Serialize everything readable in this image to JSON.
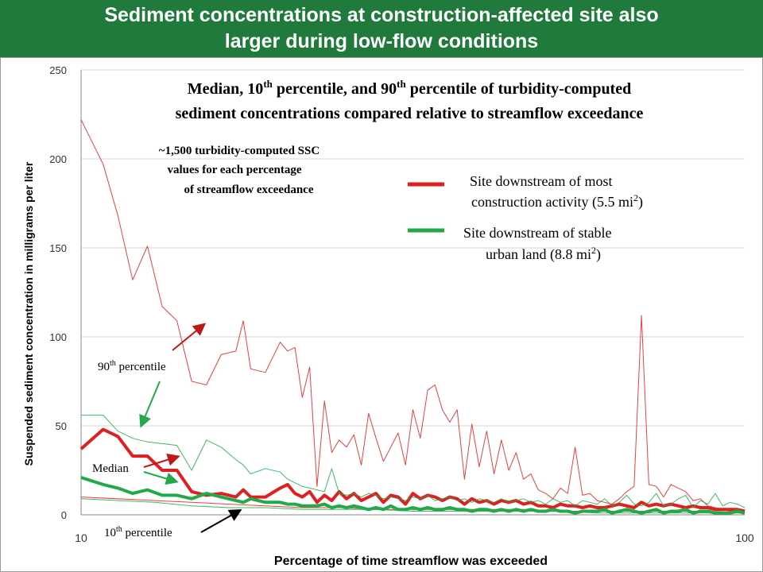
{
  "banner": {
    "title_line1": "Sediment concentrations at construction-affected site also",
    "title_line2": "larger during low-flow conditions",
    "background_color": "#1f7a3c"
  },
  "chart_data": {
    "type": "line",
    "title_line1": "Median, 10",
    "title_sup": "th",
    "title_line1_mid": " percentile, and 90",
    "title_line1_end": " percentile of turbidity-computed",
    "title_line2": "sediment concentrations compared relative to streamflow exceedance",
    "xlabel": "Percentage of time streamflow was exceeded",
    "ylabel": "Suspended sediment concentration in milligrams per liter",
    "xlim": [
      10,
      100
    ],
    "ylim": [
      0,
      250
    ],
    "x_ticks": [
      "10",
      "100"
    ],
    "y_ticks": [
      "0",
      "50",
      "100",
      "150",
      "200",
      "250"
    ],
    "grid": true,
    "annotation": {
      "line1": "~1,500 turbidity-computed SSC",
      "line2": "values for each percentage",
      "line3": "of streamflow exceedance"
    },
    "labels": {
      "p90": "90",
      "median": "Median",
      "p10": "10",
      "sup": "th",
      "percentile": " percentile"
    },
    "legend": {
      "placement": "top-right",
      "construction_line1": "Site downstream of most",
      "construction_line2": "construction activity (5.5 mi",
      "construction_sup": "2",
      "construction_close": ")",
      "urban_line1": "Site downstream of stable",
      "urban_line2": "urban land (8.8 mi",
      "urban_sup": "2",
      "urban_close": ")"
    },
    "colors": {
      "construction": "#e02020",
      "urban": "#22aa4a",
      "arrow_red": "#c01818",
      "arrow_green": "#22aa4a",
      "arrow_black": "#000000",
      "grid": "#d4d4d4"
    },
    "series": [
      {
        "site": "construction",
        "stat": "90th",
        "x": [
          10,
          13,
          15,
          17,
          19,
          21,
          23,
          25,
          27,
          29,
          31,
          32,
          33,
          35,
          37,
          38,
          39,
          40,
          41,
          42,
          43,
          44,
          45,
          46,
          47,
          48,
          49,
          50,
          51,
          52,
          53,
          54,
          55,
          56,
          57,
          58,
          59,
          60,
          61,
          62,
          63,
          64,
          65,
          66,
          67,
          68,
          69,
          70,
          71,
          72,
          73,
          74,
          75,
          76,
          77,
          78,
          79,
          80,
          81,
          82,
          83,
          84,
          85,
          86,
          87,
          88,
          89,
          90,
          91,
          92,
          93,
          94,
          95,
          96,
          97,
          98,
          99,
          100
        ],
        "values": [
          222,
          197,
          168,
          132,
          151,
          117,
          109,
          75,
          73,
          90,
          92,
          109,
          82,
          80,
          97,
          92,
          94,
          66,
          83,
          16,
          64,
          35,
          42,
          38,
          45,
          28,
          57,
          43,
          30,
          38,
          46,
          28,
          59,
          43,
          70,
          73,
          59,
          52,
          59,
          20,
          51,
          27,
          47,
          23,
          42,
          25,
          35,
          20,
          23,
          14,
          12,
          9,
          15,
          12,
          38,
          11,
          12,
          8,
          7,
          6,
          9,
          13,
          16,
          112,
          17,
          16,
          10,
          17,
          15,
          13,
          8,
          9,
          5,
          4,
          3,
          2,
          2,
          1
        ]
      },
      {
        "site": "construction",
        "stat": "median",
        "x": [
          10,
          13,
          15,
          17,
          19,
          21,
          23,
          25,
          27,
          29,
          31,
          32,
          33,
          35,
          37,
          38,
          39,
          40,
          41,
          42,
          43,
          44,
          45,
          46,
          47,
          48,
          49,
          50,
          51,
          52,
          53,
          54,
          55,
          56,
          57,
          58,
          59,
          60,
          61,
          62,
          63,
          64,
          65,
          66,
          67,
          68,
          69,
          70,
          71,
          72,
          73,
          74,
          75,
          76,
          77,
          78,
          79,
          80,
          81,
          82,
          83,
          84,
          85,
          86,
          87,
          88,
          89,
          90,
          91,
          92,
          93,
          94,
          95,
          96,
          97,
          98,
          99,
          100
        ],
        "values": [
          37,
          48,
          44,
          33,
          33,
          25,
          25,
          13,
          11,
          12,
          10,
          14,
          10,
          10,
          15,
          17,
          12,
          10,
          13,
          7,
          11,
          8,
          13,
          9,
          12,
          8,
          10,
          12,
          7,
          11,
          10,
          6,
          12,
          9,
          11,
          10,
          8,
          10,
          9,
          6,
          9,
          7,
          8,
          6,
          8,
          7,
          8,
          6,
          7,
          5,
          5,
          4,
          6,
          5,
          5,
          4,
          5,
          4,
          4,
          5,
          6,
          5,
          4,
          7,
          5,
          6,
          5,
          6,
          5,
          4,
          5,
          4,
          4,
          3,
          3,
          3,
          3,
          2
        ]
      },
      {
        "site": "construction",
        "stat": "10th",
        "x": [
          10,
          20,
          25,
          30,
          35,
          40,
          45,
          50,
          55,
          60,
          65,
          70,
          75,
          80,
          85,
          90,
          95,
          100
        ],
        "values": [
          10,
          8,
          7,
          6,
          5,
          4,
          4,
          3,
          3,
          3,
          3,
          3,
          2,
          2,
          2,
          2,
          2,
          1
        ]
      },
      {
        "site": "urban",
        "stat": "90th",
        "x": [
          10,
          13,
          15,
          17,
          19,
          21,
          23,
          25,
          27,
          29,
          31,
          32,
          33,
          35,
          37,
          38,
          39,
          40,
          41,
          42,
          43,
          44,
          45,
          46,
          47,
          48,
          49,
          50,
          51,
          52,
          53,
          54,
          55,
          56,
          57,
          58,
          59,
          60,
          61,
          62,
          63,
          64,
          65,
          66,
          67,
          68,
          69,
          70,
          71,
          72,
          73,
          74,
          75,
          76,
          77,
          78,
          79,
          80,
          81,
          82,
          83,
          84,
          85,
          86,
          87,
          88,
          89,
          90,
          91,
          92,
          93,
          94,
          95,
          96,
          97,
          98,
          99,
          100
        ],
        "values": [
          56,
          56,
          47,
          43,
          41,
          40,
          39,
          25,
          42,
          38,
          31,
          28,
          23,
          26,
          24,
          20,
          18,
          16,
          15,
          14,
          13,
          26,
          12,
          11,
          12,
          10,
          12,
          11,
          9,
          10,
          9,
          8,
          10,
          9,
          11,
          8,
          9,
          10,
          8,
          9,
          7,
          9,
          8,
          7,
          9,
          7,
          8,
          9,
          7,
          8,
          6,
          9,
          7,
          8,
          5,
          8,
          7,
          6,
          9,
          5,
          7,
          11,
          6,
          5,
          7,
          12,
          5,
          6,
          9,
          11,
          4,
          8,
          6,
          12,
          5,
          7,
          6,
          4
        ]
      },
      {
        "site": "urban",
        "stat": "median",
        "x": [
          10,
          13,
          15,
          17,
          19,
          21,
          23,
          25,
          27,
          29,
          31,
          32,
          33,
          35,
          37,
          38,
          39,
          40,
          41,
          42,
          43,
          44,
          45,
          46,
          47,
          48,
          49,
          50,
          51,
          52,
          53,
          54,
          55,
          56,
          57,
          58,
          59,
          60,
          61,
          62,
          63,
          64,
          65,
          66,
          67,
          68,
          69,
          70,
          71,
          72,
          73,
          74,
          75,
          76,
          77,
          78,
          79,
          80,
          81,
          82,
          83,
          84,
          85,
          86,
          87,
          88,
          89,
          90,
          91,
          92,
          93,
          94,
          95,
          96,
          97,
          98,
          99,
          100
        ],
        "values": [
          21,
          17,
          15,
          12,
          14,
          11,
          11,
          9,
          12,
          10,
          8,
          7,
          9,
          7,
          7,
          6,
          6,
          5,
          5,
          5,
          6,
          4,
          5,
          4,
          5,
          4,
          3,
          4,
          3,
          5,
          3,
          3,
          4,
          3,
          4,
          3,
          3,
          4,
          3,
          3,
          2,
          3,
          3,
          2,
          3,
          2,
          3,
          2,
          3,
          2,
          2,
          3,
          2,
          2,
          1,
          2,
          2,
          2,
          3,
          1,
          2,
          3,
          2,
          1,
          2,
          3,
          1,
          2,
          2,
          3,
          1,
          2,
          2,
          1,
          1,
          1,
          2,
          1
        ]
      },
      {
        "site": "urban",
        "stat": "10th",
        "x": [
          10,
          20,
          25,
          30,
          35,
          40,
          45,
          50,
          55,
          60,
          65,
          70,
          75,
          80,
          85,
          90,
          95,
          100
        ],
        "values": [
          9,
          7,
          5,
          4,
          4,
          3,
          3,
          3,
          2,
          2,
          2,
          2,
          2,
          1,
          1,
          1,
          1,
          1
        ]
      }
    ]
  }
}
